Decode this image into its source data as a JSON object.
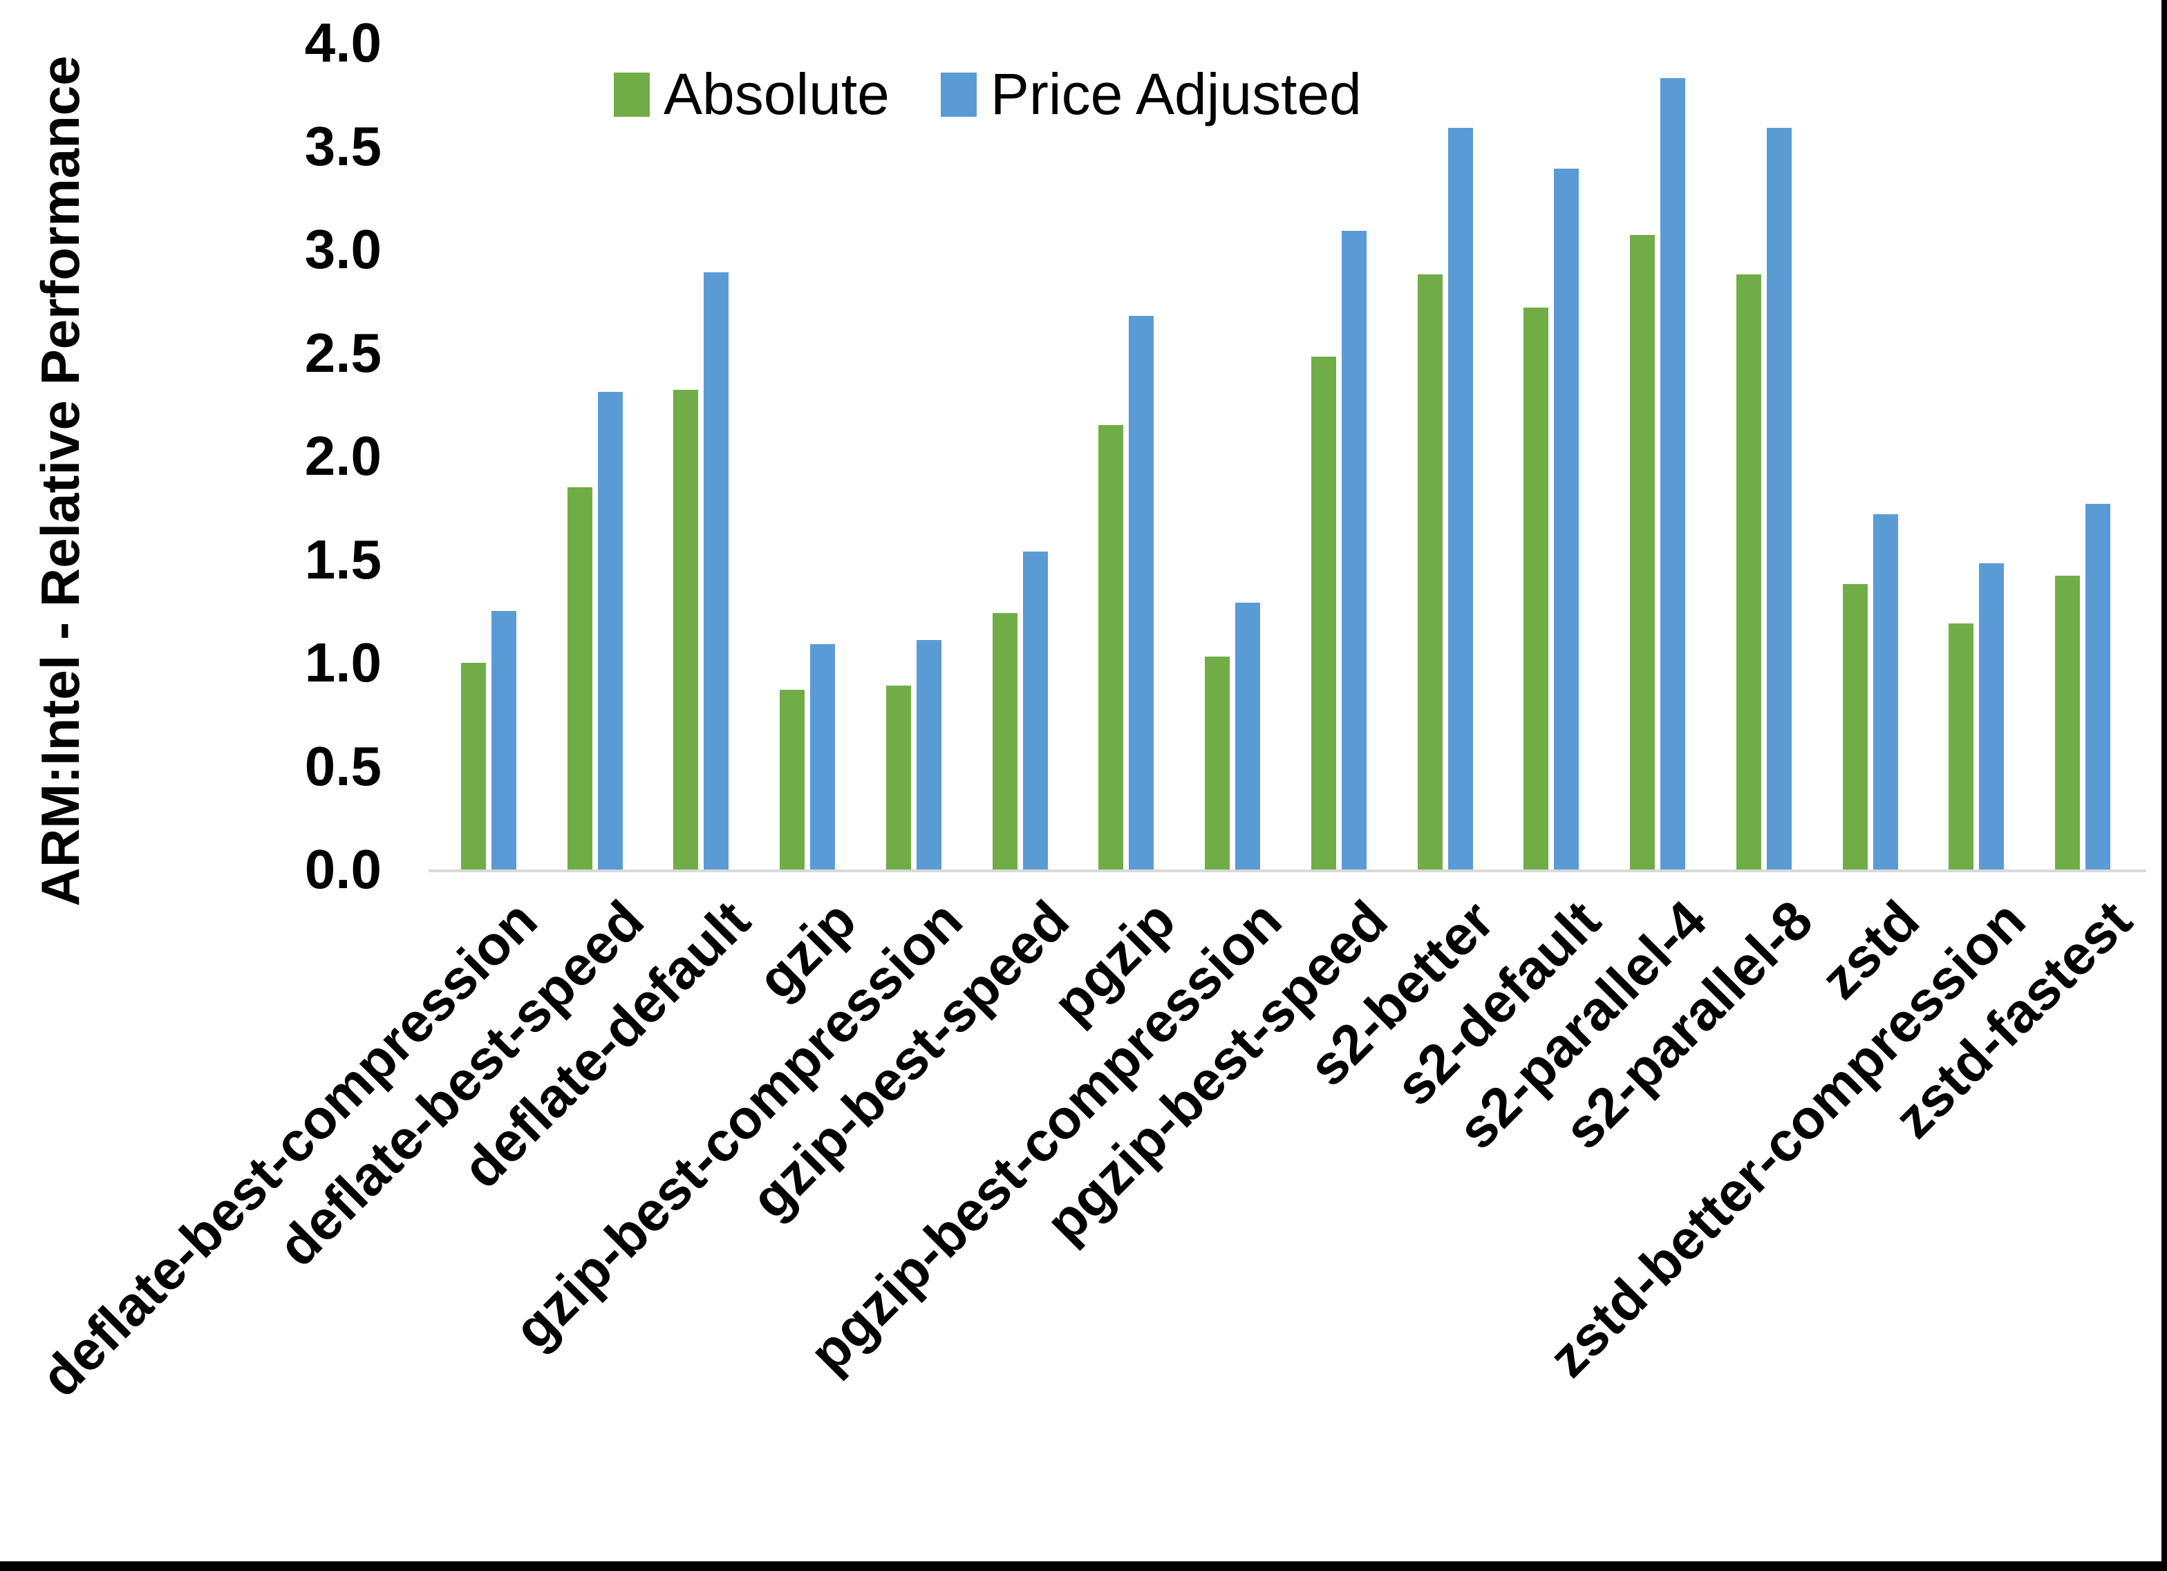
{
  "chart_data": {
    "type": "bar",
    "title": "",
    "xlabel": "",
    "ylabel": "ARM:Intel - Relative Performance",
    "ylim": [
      0.0,
      4.0
    ],
    "y_tick_step": 0.5,
    "y_tick_labels": [
      "0.0",
      "0.5",
      "1.0",
      "1.5",
      "2.0",
      "2.5",
      "3.0",
      "3.5",
      "4.0"
    ],
    "grid": false,
    "legend_position": "top-center",
    "categories": [
      "deflate-best-compression",
      "deflate-best-speed",
      "deflate-default",
      "gzip",
      "gzip-best-compression",
      "gzip-best-speed",
      "pgzip",
      "pgzip-best-compression",
      "pgzip-best-speed",
      "s2-better",
      "s2-default",
      "s2-parallel-4",
      "s2-parallel-8",
      "zstd",
      "zstd-better-compression",
      "zstd-fastest"
    ],
    "series": [
      {
        "name": "Absolute",
        "color": "#70AD47",
        "values": [
          1.0,
          1.85,
          2.32,
          0.87,
          0.89,
          1.24,
          2.15,
          1.03,
          2.48,
          2.88,
          2.72,
          3.07,
          2.88,
          1.38,
          1.19,
          1.42
        ]
      },
      {
        "name": "Price Adjusted",
        "color": "#5B9BD5",
        "values": [
          1.25,
          2.31,
          2.89,
          1.09,
          1.11,
          1.54,
          2.68,
          1.29,
          3.09,
          3.59,
          3.39,
          3.83,
          3.59,
          1.72,
          1.48,
          1.77
        ]
      }
    ],
    "axis_line_color": "#D9D9D9",
    "text_color": "#000000"
  }
}
